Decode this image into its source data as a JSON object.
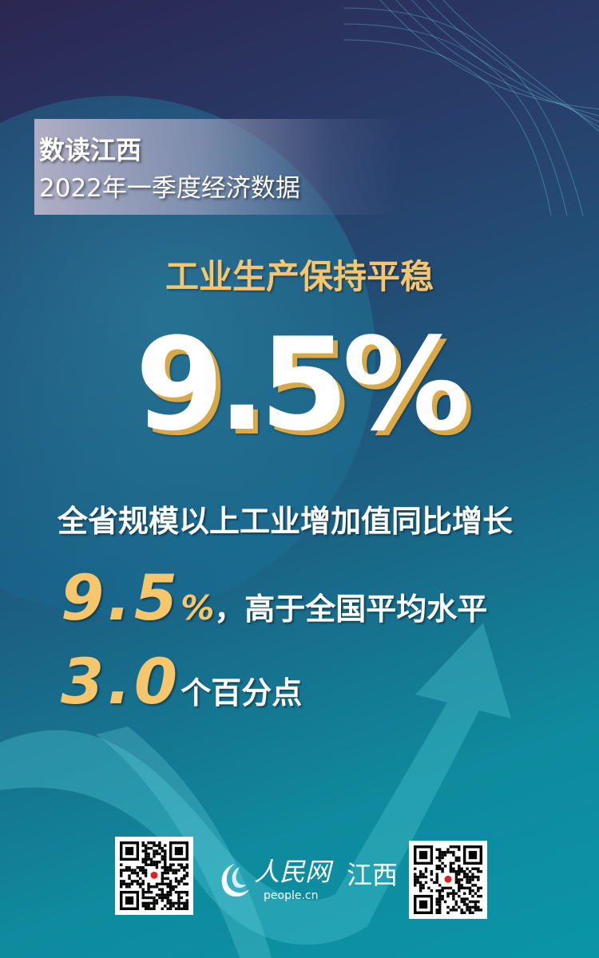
{
  "banner": {
    "title": "数读江西",
    "subtitle": "2022年一季度经济数据"
  },
  "headline": "工业生产保持平稳",
  "big_value": "9.5%",
  "body": {
    "line1": "全省规模以上工业增加值同比增长",
    "value1": "9.5",
    "value1_unit": "%",
    "line2_text": "，高于全国平均水平",
    "value2": "3.0",
    "line3_text": "个百分点"
  },
  "footer": {
    "logo_name": "人民网",
    "logo_region": "江西",
    "logo_domain": "people.cn"
  },
  "colors": {
    "accent_gold": "#f5c66c",
    "bg_top": "#2b2752",
    "bg_bottom": "#0a95a5"
  }
}
